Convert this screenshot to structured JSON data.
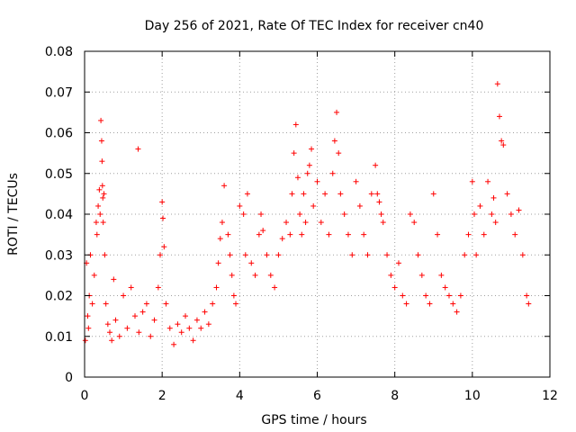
{
  "chart_data": {
    "type": "scatter",
    "title": "Day 256 of 2021, Rate Of TEC Index for receiver cn40",
    "xlabel": "GPS time / hours",
    "ylabel": "ROTI / TECUs",
    "xlim": [
      0,
      12
    ],
    "ylim": [
      0,
      0.08
    ],
    "xticks": [
      0,
      2,
      4,
      6,
      8,
      10,
      12
    ],
    "xtick_labels": [
      "0",
      "2",
      "4",
      "6",
      "8",
      "10",
      "12"
    ],
    "yticks": [
      0,
      0.01,
      0.02,
      0.03,
      0.04,
      0.05,
      0.06,
      0.07,
      0.08
    ],
    "ytick_labels": [
      "0",
      "0.01",
      "0.02",
      "0.03",
      "0.04",
      "0.05",
      "0.06",
      "0.07",
      "0.08"
    ],
    "grid": true,
    "marker": "plus",
    "color": "#ff0000",
    "series": [
      {
        "name": "cn40",
        "x": [
          0.02,
          0.05,
          0.08,
          0.1,
          0.12,
          0.15,
          0.2,
          0.25,
          0.3,
          0.32,
          0.35,
          0.38,
          0.4,
          0.42,
          0.44,
          0.45,
          0.46,
          0.47,
          0.48,
          0.5,
          0.52,
          0.55,
          0.6,
          0.65,
          0.7,
          0.75,
          0.8,
          0.9,
          1.0,
          1.1,
          1.2,
          1.3,
          1.38,
          1.4,
          1.5,
          1.6,
          1.7,
          1.8,
          1.9,
          1.95,
          2.0,
          2.02,
          2.05,
          2.1,
          2.2,
          2.3,
          2.4,
          2.5,
          2.6,
          2.7,
          2.8,
          2.9,
          3.0,
          3.1,
          3.2,
          3.3,
          3.4,
          3.45,
          3.5,
          3.55,
          3.6,
          3.7,
          3.75,
          3.8,
          3.85,
          3.9,
          4.0,
          4.1,
          4.15,
          4.2,
          4.3,
          4.4,
          4.5,
          4.55,
          4.6,
          4.7,
          4.8,
          4.9,
          5.0,
          5.1,
          5.2,
          5.3,
          5.35,
          5.4,
          5.45,
          5.5,
          5.55,
          5.6,
          5.65,
          5.7,
          5.75,
          5.8,
          5.85,
          5.9,
          6.0,
          6.1,
          6.2,
          6.3,
          6.4,
          6.45,
          6.5,
          6.55,
          6.6,
          6.7,
          6.8,
          6.9,
          7.0,
          7.1,
          7.2,
          7.3,
          7.4,
          7.5,
          7.55,
          7.6,
          7.65,
          7.7,
          7.8,
          7.9,
          8.0,
          8.1,
          8.2,
          8.3,
          8.4,
          8.5,
          8.6,
          8.7,
          8.8,
          8.9,
          9.0,
          9.1,
          9.2,
          9.3,
          9.4,
          9.5,
          9.6,
          9.7,
          9.8,
          9.9,
          10.0,
          10.05,
          10.1,
          10.2,
          10.3,
          10.4,
          10.5,
          10.55,
          10.6,
          10.65,
          10.7,
          10.75,
          10.8,
          10.9,
          11.0,
          11.1,
          11.2,
          11.3,
          11.4,
          11.45
        ],
        "y": [
          0.009,
          0.028,
          0.015,
          0.012,
          0.02,
          0.03,
          0.018,
          0.025,
          0.038,
          0.035,
          0.042,
          0.046,
          0.04,
          0.063,
          0.058,
          0.053,
          0.047,
          0.044,
          0.038,
          0.045,
          0.03,
          0.018,
          0.013,
          0.011,
          0.009,
          0.024,
          0.014,
          0.01,
          0.02,
          0.012,
          0.022,
          0.015,
          0.056,
          0.011,
          0.016,
          0.018,
          0.01,
          0.014,
          0.022,
          0.03,
          0.043,
          0.039,
          0.032,
          0.018,
          0.012,
          0.008,
          0.013,
          0.011,
          0.015,
          0.012,
          0.009,
          0.014,
          0.012,
          0.016,
          0.013,
          0.018,
          0.022,
          0.028,
          0.034,
          0.038,
          0.047,
          0.035,
          0.03,
          0.025,
          0.02,
          0.018,
          0.042,
          0.04,
          0.03,
          0.045,
          0.028,
          0.025,
          0.035,
          0.04,
          0.036,
          0.03,
          0.025,
          0.022,
          0.03,
          0.034,
          0.038,
          0.035,
          0.045,
          0.055,
          0.062,
          0.049,
          0.04,
          0.035,
          0.045,
          0.038,
          0.05,
          0.052,
          0.056,
          0.042,
          0.048,
          0.038,
          0.045,
          0.035,
          0.05,
          0.058,
          0.065,
          0.055,
          0.045,
          0.04,
          0.035,
          0.03,
          0.048,
          0.042,
          0.035,
          0.03,
          0.045,
          0.052,
          0.045,
          0.043,
          0.04,
          0.038,
          0.03,
          0.025,
          0.022,
          0.028,
          0.02,
          0.018,
          0.04,
          0.038,
          0.03,
          0.025,
          0.02,
          0.018,
          0.045,
          0.035,
          0.025,
          0.022,
          0.02,
          0.018,
          0.016,
          0.02,
          0.03,
          0.035,
          0.048,
          0.04,
          0.03,
          0.042,
          0.035,
          0.048,
          0.04,
          0.044,
          0.038,
          0.072,
          0.064,
          0.058,
          0.057,
          0.045,
          0.04,
          0.035,
          0.041,
          0.03,
          0.02,
          0.018
        ]
      }
    ]
  }
}
